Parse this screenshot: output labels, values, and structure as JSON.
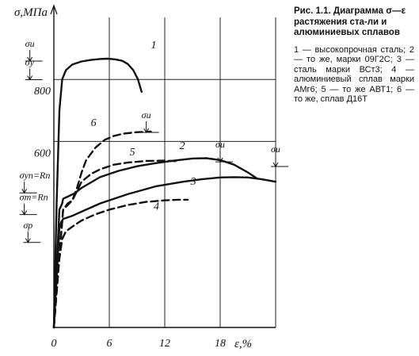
{
  "caption": {
    "title": "Рис. 1.1. Диаграмма σ—ε растяжения ста-ли и алюминиевых сплавов",
    "body": "1 — высокопрочная сталь; 2 — то же, марки 09Г2С; 3 — сталь марки ВСт3; 4 — алюминиевый сплав марки АМг6; 5 — то же АВТ1; 6 — то же, сплав Д16Т"
  },
  "chart_data": {
    "type": "line",
    "ylabel": "σ,МПа",
    "xlabel": "ε,%",
    "xlim": [
      0,
      24
    ],
    "ylim": [
      0,
      1000
    ],
    "x_ticks": [
      0,
      6,
      12,
      18
    ],
    "x_tick_labels": [
      "0",
      "6",
      "12",
      "18"
    ],
    "y_ticks": [
      600,
      800
    ],
    "y_tick_labels": [
      "600",
      "800"
    ],
    "grid": true,
    "series": [
      {
        "name": "1",
        "dash": false,
        "x": [
          0,
          0.3,
          0.6,
          0.9,
          1.3,
          2.0,
          3.0,
          4.0,
          5.0,
          5.8,
          6.6,
          7.4,
          8.0,
          8.6,
          9.1,
          9.5
        ],
        "y": [
          0,
          400,
          700,
          800,
          830,
          848,
          858,
          863,
          866,
          867,
          865,
          860,
          850,
          830,
          800,
          760
        ]
      },
      {
        "name": "2",
        "dash": false,
        "x": [
          0,
          0.6,
          0.9,
          1.0,
          1.5,
          2.2,
          3.0,
          5.0,
          7.0,
          9.0,
          11.0,
          13.0,
          15.0,
          16.5,
          18.0,
          19.5,
          21.0,
          22.0
        ],
        "y": [
          0,
          380,
          400,
          415,
          422,
          432,
          450,
          485,
          505,
          520,
          530,
          538,
          545,
          546,
          540,
          525,
          500,
          480
        ]
      },
      {
        "name": "3",
        "dash": false,
        "x": [
          0,
          0.6,
          0.8,
          1.0,
          2.0,
          3.5,
          5.0,
          8.0,
          11.0,
          14.0,
          16.0,
          18.0,
          19.5,
          21.0,
          22.5,
          24.0
        ],
        "y": [
          0,
          320,
          340,
          350,
          360,
          380,
          400,
          430,
          455,
          470,
          478,
          484,
          485,
          484,
          478,
          470
        ]
      },
      {
        "name": "4",
        "dash": true,
        "x": [
          0,
          0.5,
          0.9,
          1.3,
          2.0,
          3.0,
          4.5,
          6.0,
          8.0,
          10.0,
          12.0,
          13.5,
          14.5
        ],
        "y": [
          0,
          200,
          285,
          310,
          325,
          345,
          365,
          380,
          395,
          405,
          410,
          412,
          412
        ]
      },
      {
        "name": "5",
        "dash": true,
        "x": [
          0,
          1.0,
          1.5,
          2.0,
          2.5,
          3.0,
          4.0,
          5.0,
          6.5,
          8.0,
          10.0,
          12.0,
          13.5
        ],
        "y": [
          0,
          380,
          400,
          410,
          440,
          470,
          495,
          510,
          525,
          532,
          537,
          538,
          536
        ]
      },
      {
        "name": "6",
        "dash": true,
        "x": [
          0,
          1.0,
          1.5,
          2.0,
          2.5,
          3.0,
          3.5,
          4.5,
          5.5,
          6.5,
          7.5,
          9.0,
          10.5
        ],
        "y": [
          0,
          380,
          395,
          410,
          450,
          500,
          540,
          580,
          605,
          618,
          625,
          630,
          632
        ]
      }
    ],
    "annotations": [
      {
        "text": "σu",
        "x": -2.6,
        "y": 895
      },
      {
        "text": "σy",
        "x": -2.6,
        "y": 835
      },
      {
        "text": "σyn=Rn",
        "x": -3.2,
        "y": 470
      },
      {
        "text": "σm=Rn",
        "x": -3.2,
        "y": 400
      },
      {
        "text": "σp",
        "x": -2.8,
        "y": 310
      },
      {
        "text": "σu",
        "x": 10.0,
        "y": 665
      },
      {
        "text": "σu",
        "x": 18.0,
        "y": 570
      },
      {
        "text": "σu",
        "x": 24.0,
        "y": 555
      }
    ]
  }
}
